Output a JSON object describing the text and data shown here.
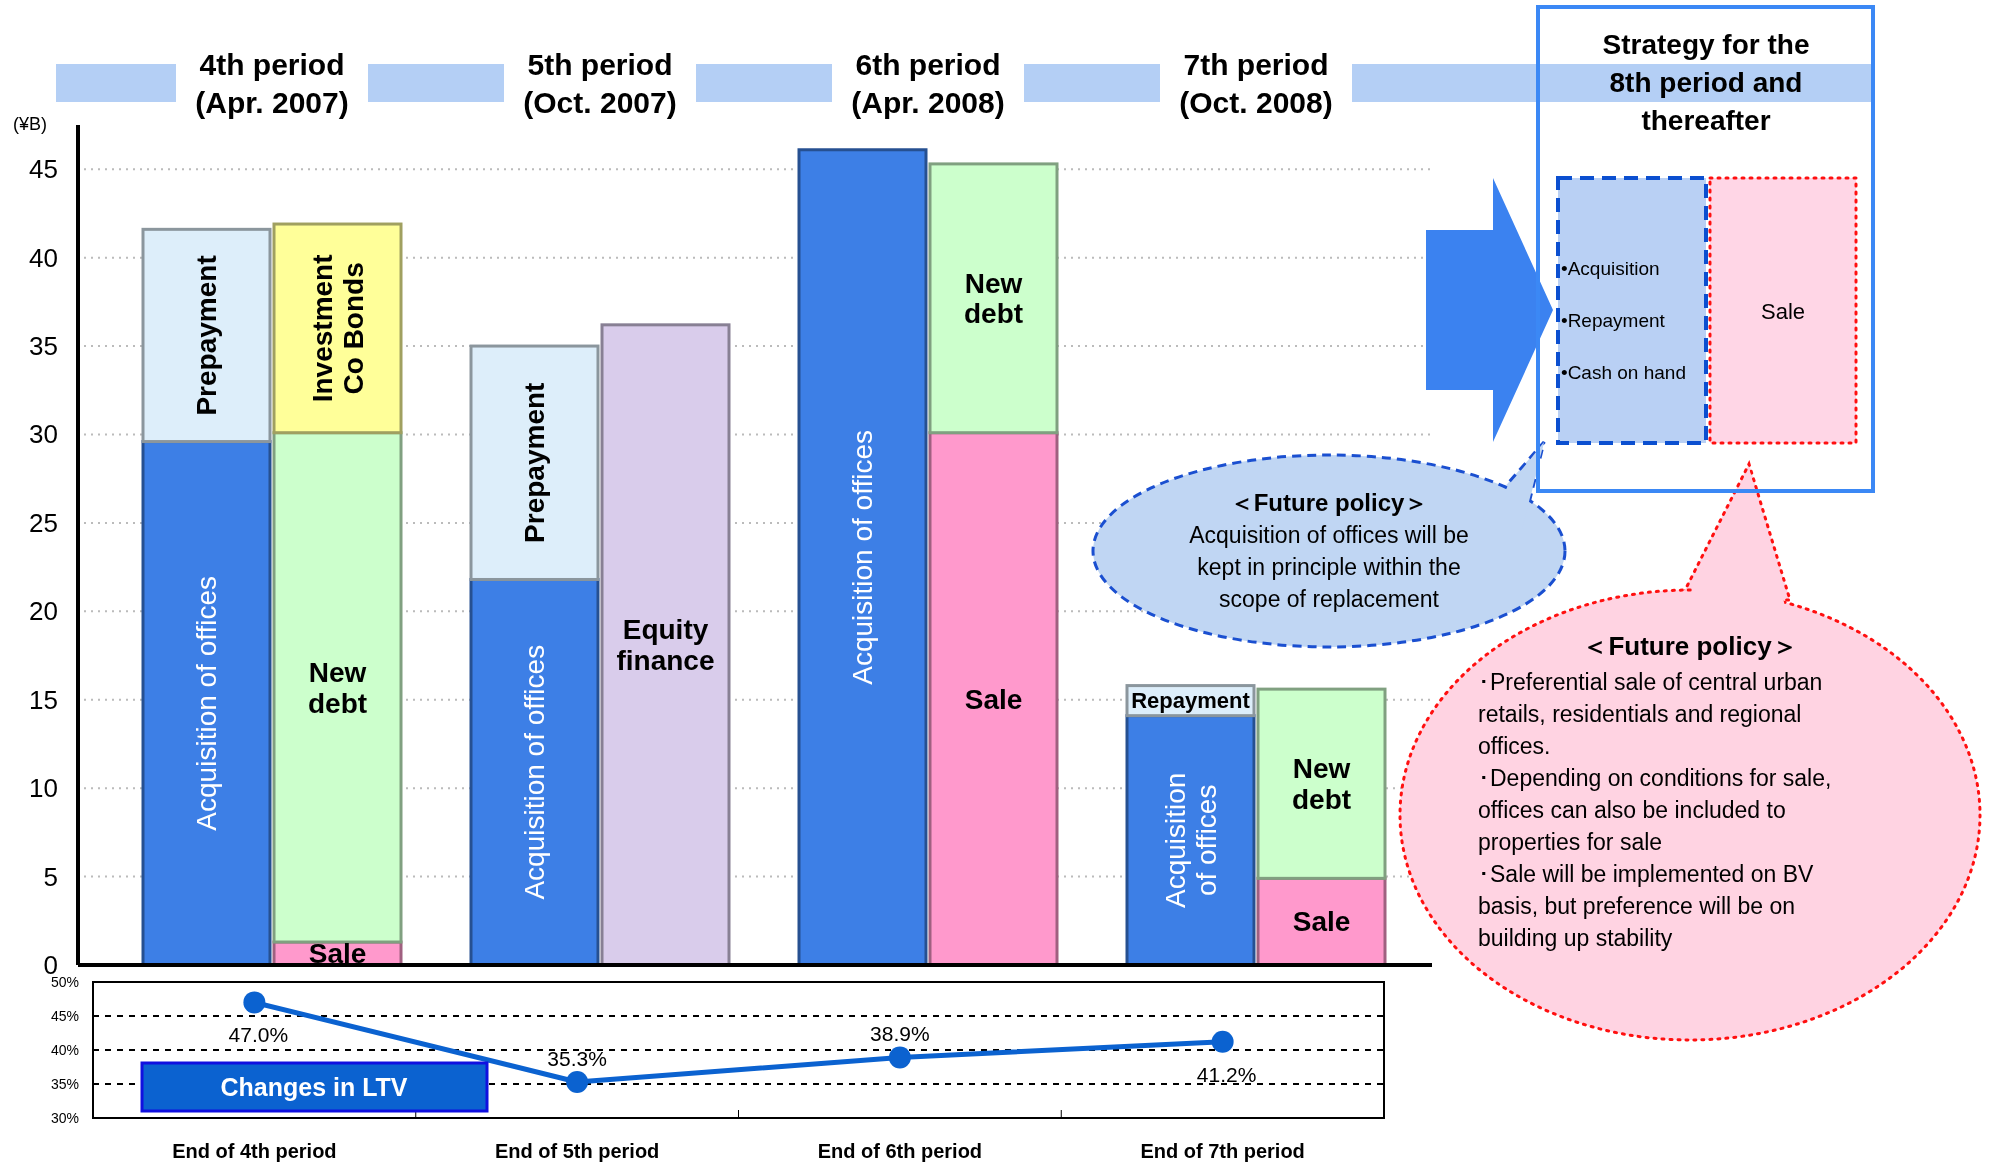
{
  "chart_data": [
    {
      "type": "bar",
      "stacked": true,
      "ylabel": "(¥B)",
      "categories": [
        null,
        null,
        null,
        null,
        null,
        null,
        null,
        null
      ],
      "ylim": [
        0,
        47.5
      ],
      "yticks": [
        0,
        5,
        10,
        15,
        20,
        25,
        30,
        35,
        40,
        45
      ],
      "grid": "y",
      "series": [
        {
          "name": "Acquisition of offices",
          "color": "#3d7fe6",
          "values": [
            29.6,
            null,
            21.8,
            null,
            46.1,
            null,
            14.1,
            null
          ]
        },
        {
          "name": "Sale",
          "color": "#ff99cc",
          "values": [
            null,
            1.3,
            null,
            null,
            null,
            30.1,
            null,
            4.9
          ]
        },
        {
          "name": "Equity finance",
          "color": "#d9cceb",
          "values": [
            null,
            null,
            null,
            36.2,
            null,
            null,
            null,
            null
          ]
        },
        {
          "name": "New debt",
          "color": "#ccffcc",
          "values": [
            null,
            28.8,
            null,
            null,
            null,
            15.2,
            null,
            10.7
          ]
        },
        {
          "name": "Prepayment",
          "color": "#ddeefa",
          "values": [
            12.0,
            null,
            13.2,
            null,
            null,
            null,
            null,
            null
          ]
        },
        {
          "name": "Repayment",
          "color": "#ddeefa",
          "values": [
            null,
            null,
            null,
            null,
            null,
            null,
            1.7,
            null
          ]
        },
        {
          "name": "Investment Co Bonds",
          "color": "#ffff99",
          "values": [
            null,
            11.8,
            null,
            null,
            null,
            null,
            null,
            null
          ]
        }
      ],
      "annotations": [
        "4th period\n(Apr. 2007)",
        "5th period\n(Oct. 2007)",
        "6th period\n(Apr. 2008)",
        "7th period\n(Oct. 2008)",
        "Strategy for the\n8th period and\nthereafter",
        "•Acquisition\n•Repayment\n•Cash on hand",
        "Sale",
        "＜Future policy＞",
        "Acquisition of offices will be\nkept in principle within the\nscope of replacement",
        "＜Future policy＞",
        "･Preferential sale of central urban\nretails, residentials and regional\noffices.\n･Depending on conditions for sale,\noffices can also be included to\nproperties for sale\n･Sale will be implemented on BV\nbasis, but preference will be on\nbuilding up stability"
      ]
    },
    {
      "type": "line",
      "categories": [
        "End of 4th period",
        "End of 5th period",
        "End of 6th period",
        "End of 7th period"
      ],
      "ylim": [
        30,
        50
      ],
      "yticks": [
        {
          "value": 30,
          "label": "30%"
        },
        {
          "value": 35,
          "label": "35%"
        },
        {
          "value": 40,
          "label": "40%"
        },
        {
          "value": 45,
          "label": "45%"
        },
        {
          "value": 50,
          "label": "50%"
        }
      ],
      "grid": "y",
      "marker": "circle",
      "legend": "bottom left",
      "series": [
        {
          "name": "Changes in LTV",
          "color": "#0b62d0",
          "values": [
            47.0,
            35.3,
            38.9,
            41.2
          ],
          "value_labels": [
            "47.0%",
            "35.3%",
            "38.9%",
            "41.2%"
          ]
        }
      ]
    }
  ]
}
